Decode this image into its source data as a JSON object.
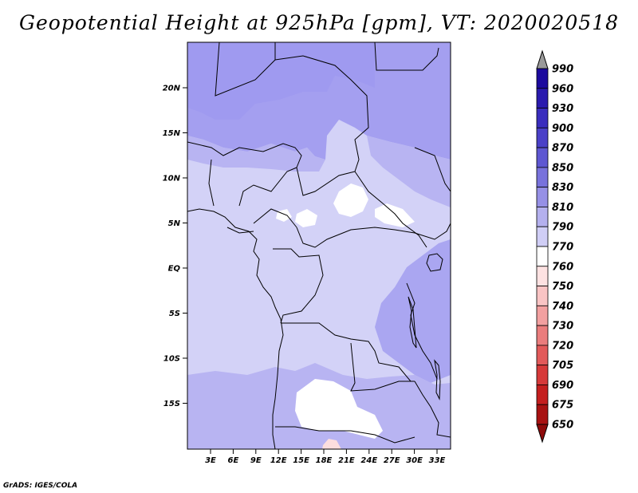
{
  "title": "Geopotential Height at 925hPa [gpm], VT: 2020020518",
  "credit": "GrADS: IGES/COLA",
  "map": {
    "lat_labels": [
      "20N",
      "15N",
      "10N",
      "5N",
      "EQ",
      "5S",
      "10S",
      "15S"
    ],
    "lon_labels": [
      "3E",
      "6E",
      "9E",
      "12E",
      "15E",
      "18E",
      "21E",
      "24E",
      "27E",
      "30E",
      "33E"
    ]
  },
  "colorbar": {
    "levels": [
      "990",
      "960",
      "930",
      "900",
      "870",
      "850",
      "830",
      "810",
      "790",
      "770",
      "760",
      "750",
      "740",
      "730",
      "720",
      "705",
      "690",
      "675",
      "650"
    ],
    "colors": [
      "#9a9a9a",
      "#1c0a9e",
      "#2a1aae",
      "#3a2dbe",
      "#4a40c8",
      "#5e57d2",
      "#7872dc",
      "#9690e6",
      "#b4b0ee",
      "#d0cef6",
      "#ffffff",
      "#fde2e2",
      "#f9c4c4",
      "#f2a0a0",
      "#ea7d7d",
      "#e25a5a",
      "#d63a3a",
      "#c41f1f",
      "#a81212",
      "#8e0a0a"
    ]
  },
  "colors": {
    "field_strong": "#9f9af0",
    "field_mid": "#b8b4f2",
    "field_light": "#d3d2f7",
    "field_white": "#ffffff",
    "field_pink": "#fcdede"
  }
}
